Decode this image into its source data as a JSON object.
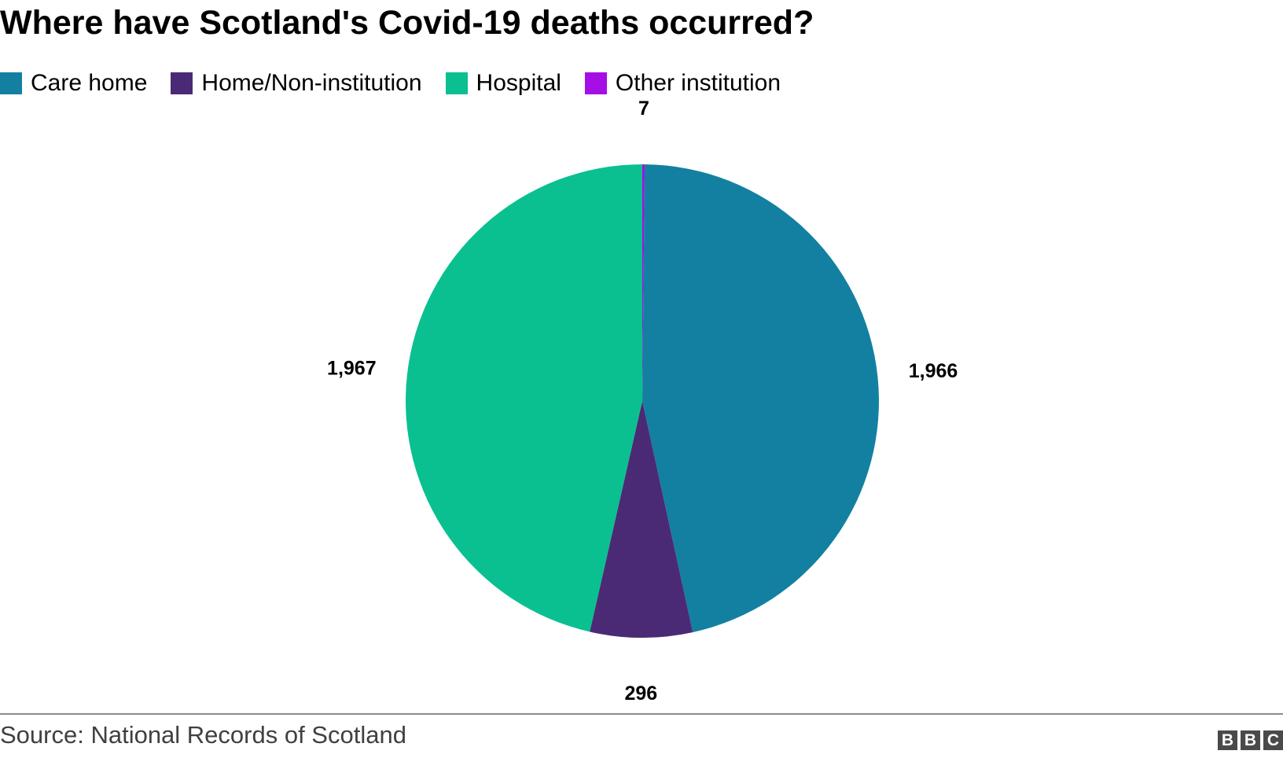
{
  "title": "Where have Scotland's Covid-19 deaths occurred?",
  "source": "Source: National Records of Scotland",
  "logo": {
    "letters": [
      "B",
      "B",
      "C"
    ]
  },
  "chart_data": {
    "type": "pie",
    "title": "Where have Scotland's Covid-19 deaths occurred?",
    "legend_position": "top-left",
    "slices": [
      {
        "label": "Other institution",
        "value": 7,
        "display": "7",
        "color": "#a50fe6"
      },
      {
        "label": "Care home",
        "value": 1966,
        "display": "1,966",
        "color": "#1380a1"
      },
      {
        "label": "Home/Non-institution",
        "value": 296,
        "display": "296",
        "color": "#4b2a75"
      },
      {
        "label": "Hospital",
        "value": 1967,
        "display": "1,967",
        "color": "#0ac090"
      }
    ],
    "legend": [
      {
        "label": "Care home",
        "color": "#1380a1"
      },
      {
        "label": "Home/Non-institution",
        "color": "#4b2a75"
      },
      {
        "label": "Hospital",
        "color": "#0ac090"
      },
      {
        "label": "Other institution",
        "color": "#a50fe6"
      }
    ]
  }
}
